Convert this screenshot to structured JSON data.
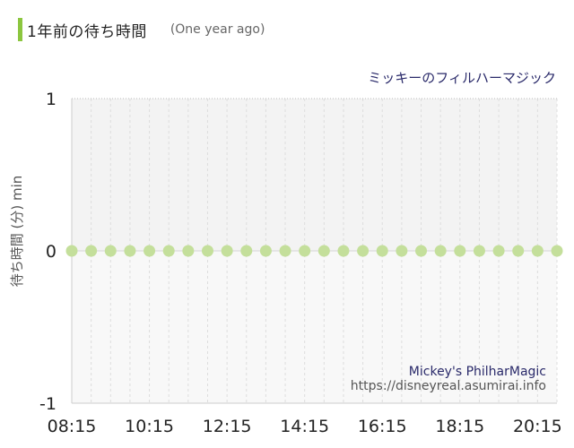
{
  "header": {
    "title": "1年前の待ち時間",
    "subtitle": "(One year ago)",
    "accent_color": "#8cc63f"
  },
  "chart_data": {
    "type": "scatter",
    "title": "ミッキーのフィルハーマジック",
    "ylabel": "待ち時間 (分) min",
    "xlabel": "",
    "ylim": [
      -1,
      1
    ],
    "y_ticks": [
      "1",
      "0",
      "-1"
    ],
    "x_tick_labels": [
      "08:15",
      "10:15",
      "12:15",
      "14:15",
      "16:15",
      "18:15",
      "20:15"
    ],
    "x": [
      "08:15",
      "08:45",
      "09:15",
      "09:45",
      "10:15",
      "10:45",
      "11:15",
      "11:45",
      "12:15",
      "12:45",
      "13:15",
      "13:45",
      "14:15",
      "14:45",
      "15:15",
      "15:45",
      "16:15",
      "16:45",
      "17:15",
      "17:45",
      "18:15",
      "18:45",
      "19:15",
      "19:45",
      "20:15",
      "20:45"
    ],
    "series": [
      {
        "values": [
          0,
          0,
          0,
          0,
          0,
          0,
          0,
          0,
          0,
          0,
          0,
          0,
          0,
          0,
          0,
          0,
          0,
          0,
          0,
          0,
          0,
          0,
          0,
          0,
          0,
          0
        ],
        "color": "#c4df9b"
      }
    ],
    "grid": true,
    "watermark": {
      "name": "Mickey's PhilharMagic",
      "url": "https://disneyreal.asumirai.info"
    }
  }
}
